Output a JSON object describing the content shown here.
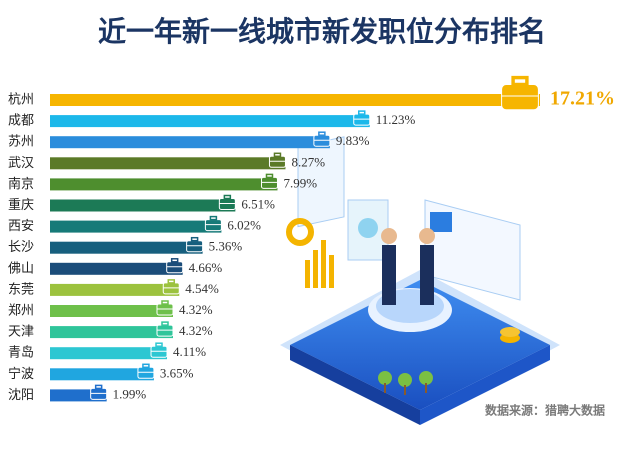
{
  "chart_data": {
    "type": "hbar",
    "title": "近一年新一线城市新发职位分布排名",
    "source": "数据来源：猎聘大数据",
    "categories": [
      "杭州",
      "成都",
      "苏州",
      "武汉",
      "南京",
      "重庆",
      "西安",
      "长沙",
      "佛山",
      "东莞",
      "郑州",
      "天津",
      "青岛",
      "宁波",
      "沈阳"
    ],
    "values": [
      17.21,
      11.23,
      9.83,
      8.27,
      7.99,
      6.51,
      6.02,
      5.36,
      4.66,
      4.54,
      4.32,
      4.32,
      4.11,
      3.65,
      1.99
    ],
    "value_labels": [
      "17.21%",
      "11.23%",
      "9.83%",
      "8.27%",
      "7.99%",
      "6.51%",
      "6.02%",
      "5.36%",
      "4.66%",
      "4.54%",
      "4.32%",
      "4.32%",
      "4.11%",
      "3.65%",
      "1.99%"
    ],
    "colors": [
      "#f6b500",
      "#1cb8ea",
      "#2b8ddc",
      "#5b7a28",
      "#4e8e2e",
      "#1c7a56",
      "#167a78",
      "#175f7e",
      "#1b4d7a",
      "#9cc23e",
      "#6ec04a",
      "#2fc59a",
      "#2dc7d2",
      "#20a6e0",
      "#1f6fcc"
    ]
  }
}
